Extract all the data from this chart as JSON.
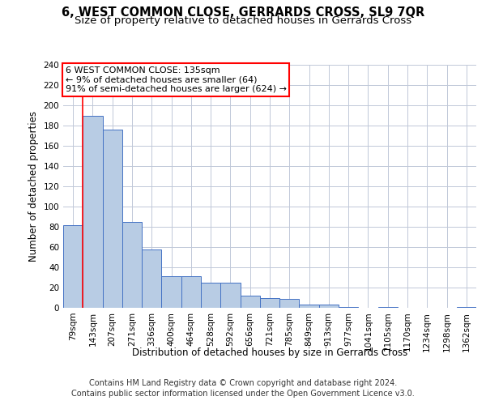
{
  "title": "6, WEST COMMON CLOSE, GERRARDS CROSS, SL9 7QR",
  "subtitle": "Size of property relative to detached houses in Gerrards Cross",
  "xlabel": "Distribution of detached houses by size in Gerrards Cross",
  "ylabel": "Number of detached properties",
  "categories": [
    "79sqm",
    "143sqm",
    "207sqm",
    "271sqm",
    "336sqm",
    "400sqm",
    "464sqm",
    "528sqm",
    "592sqm",
    "656sqm",
    "721sqm",
    "785sqm",
    "849sqm",
    "913sqm",
    "977sqm",
    "1041sqm",
    "1105sqm",
    "1170sqm",
    "1234sqm",
    "1298sqm",
    "1362sqm"
  ],
  "values": [
    82,
    190,
    176,
    85,
    58,
    31,
    31,
    25,
    25,
    12,
    10,
    9,
    3,
    3,
    1,
    0,
    1,
    0,
    0,
    0,
    1
  ],
  "bar_color": "#b8cce4",
  "bar_edge_color": "#4472c4",
  "annotation_box_text": "6 WEST COMMON CLOSE: 135sqm\n← 9% of detached houses are smaller (64)\n91% of semi-detached houses are larger (624) →",
  "annotation_box_color": "#ffffff",
  "annotation_box_edge_color": "#ff0000",
  "vline_x_index": 1,
  "vline_color": "#ff0000",
  "ylim": [
    0,
    240
  ],
  "yticks": [
    0,
    20,
    40,
    60,
    80,
    100,
    120,
    140,
    160,
    180,
    200,
    220,
    240
  ],
  "footer_line1": "Contains HM Land Registry data © Crown copyright and database right 2024.",
  "footer_line2": "Contains public sector information licensed under the Open Government Licence v3.0.",
  "background_color": "#ffffff",
  "grid_color": "#c0c8d8",
  "title_fontsize": 10.5,
  "subtitle_fontsize": 9.5,
  "axis_label_fontsize": 8.5,
  "tick_fontsize": 7.5,
  "footer_fontsize": 7,
  "annotation_fontsize": 8
}
